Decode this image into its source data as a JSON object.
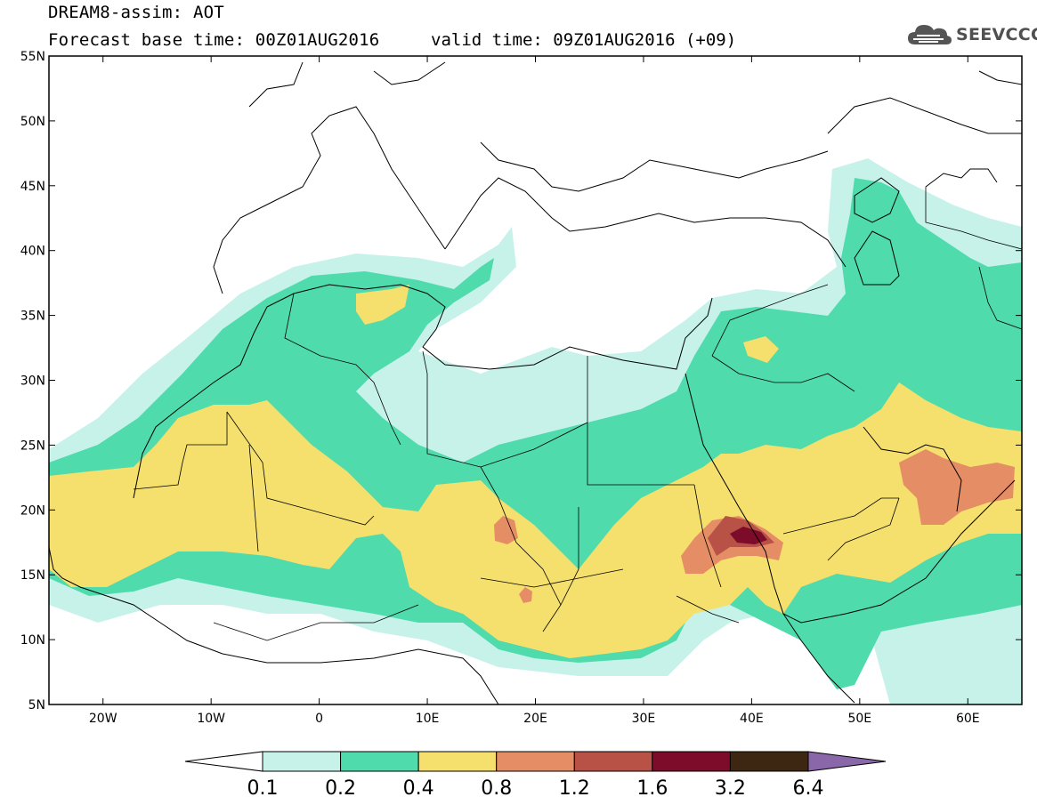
{
  "title": {
    "line1": "DREAM8-assim: AOT",
    "line2_base": "Forecast base time: 00Z01AUG2016",
    "line2_valid": "valid time: 09Z01AUG2016 (+09)"
  },
  "logo": {
    "text": "SEEVCCC",
    "icon": "cloud-icon"
  },
  "axes": {
    "lat_labels": [
      "55N",
      "50N",
      "45N",
      "40N",
      "35N",
      "30N",
      "25N",
      "20N",
      "15N",
      "10N",
      "5N"
    ],
    "lon_labels": [
      "20W",
      "10W",
      "0",
      "10E",
      "20E",
      "30E",
      "40E",
      "50E",
      "60E"
    ],
    "lat_range": [
      5,
      55
    ],
    "lon_range": [
      -25,
      65
    ]
  },
  "colorbar": {
    "levels": [
      "0.1",
      "0.2",
      "0.4",
      "0.8",
      "1.2",
      "1.6",
      "3.2",
      "6.4"
    ],
    "colors": [
      "#c6f2ea",
      "#4fdbac",
      "#f5e06e",
      "#e58e66",
      "#b85146",
      "#7c0c2a",
      "#3d2713",
      "#8a67a8"
    ],
    "under_color": "#ffffff"
  }
}
